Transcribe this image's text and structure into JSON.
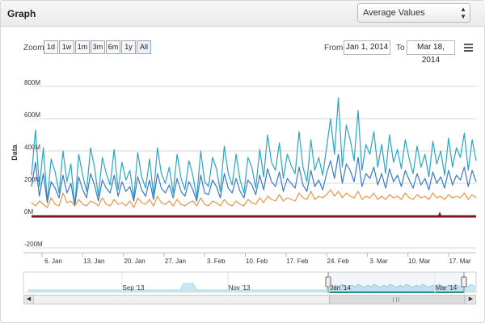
{
  "header": {
    "title": "Graph",
    "metric_select": {
      "value": "Average Values",
      "icon": "updown-arrows-icon"
    }
  },
  "toolbar": {
    "zoom_label": "Zoom",
    "zoom_buttons": [
      "1d",
      "1w",
      "1m",
      "3m",
      "6m",
      "1y",
      "All"
    ],
    "from_label": "From",
    "from_value": "Jan 1, 2014",
    "to_label": "To",
    "to_value": "Mar 18, 2014",
    "menu_icon": "hamburger-menu-icon"
  },
  "colors": {
    "series_cyan": "#2aa5c4",
    "series_blue": "#3b78c8",
    "series_orange": "#e8954a",
    "series_darkred": "#7a1a1a",
    "navigator_fill": "#c8e9f3",
    "grid": "#d8d8d8"
  },
  "chart_data": {
    "type": "line",
    "ylabel": "Data",
    "y_ticks": [
      "800M",
      "600M",
      "400M",
      "200M",
      "0M",
      "-200M"
    ],
    "ylim": [
      -200,
      800
    ],
    "y_unit": "M",
    "x_ticks": [
      "6. Jan",
      "13. Jan",
      "20. Jan",
      "27. Jan",
      "3. Feb",
      "10. Feb",
      "17. Feb",
      "24. Feb",
      "3. Mar",
      "10. Mar",
      "17. Mar"
    ],
    "x_range": [
      "2014-01-01",
      "2014-03-18"
    ],
    "grid": true,
    "legend": "none",
    "series": [
      {
        "key": "cyan",
        "color": "#2aa5c4",
        "level": "high",
        "samples": [
          250,
          530,
          180,
          420,
          90,
          350,
          270,
          140,
          400,
          210,
          320,
          60,
          380,
          250,
          150,
          420,
          300,
          120,
          360,
          260,
          190,
          410,
          160,
          330,
          220,
          280,
          110,
          390,
          240,
          170,
          350,
          130,
          420,
          260,
          200,
          300,
          140,
          380,
          230,
          160,
          340,
          250,
          110,
          400,
          210,
          180,
          360,
          290,
          150,
          430,
          260,
          190,
          380,
          220,
          140,
          360,
          300,
          170,
          410,
          240,
          500,
          330,
          280,
          450,
          230,
          380,
          310,
          260,
          520,
          300,
          210,
          470,
          280,
          360,
          250,
          420,
          600,
          380,
          730,
          300,
          560,
          470,
          340,
          650,
          280,
          440,
          380,
          520,
          300,
          440,
          260,
          500,
          330,
          410,
          290,
          470,
          350,
          260,
          430,
          300,
          380,
          240,
          460,
          320,
          400,
          250,
          480,
          300,
          420,
          360,
          510,
          280,
          470,
          340
        ]
      },
      {
        "key": "blue",
        "color": "#3b78c8",
        "level": "mid",
        "samples": [
          180,
          330,
          120,
          260,
          80,
          210,
          170,
          110,
          250,
          140,
          200,
          60,
          240,
          160,
          110,
          260,
          190,
          90,
          220,
          170,
          140,
          250,
          120,
          210,
          150,
          180,
          90,
          240,
          160,
          120,
          220,
          100,
          260,
          170,
          140,
          190,
          110,
          230,
          150,
          120,
          210,
          160,
          90,
          250,
          140,
          130,
          220,
          180,
          110,
          260,
          170,
          140,
          230,
          150,
          110,
          220,
          190,
          130,
          250,
          160,
          290,
          210,
          180,
          270,
          150,
          230,
          200,
          170,
          300,
          190,
          150,
          280,
          180,
          220,
          160,
          260,
          340,
          230,
          380,
          200,
          320,
          280,
          210,
          360,
          180,
          260,
          230,
          300,
          190,
          260,
          170,
          290,
          210,
          250,
          180,
          280,
          220,
          170,
          260,
          190,
          230,
          160,
          270,
          200,
          240,
          170,
          280,
          190,
          250,
          220,
          300,
          180,
          280,
          210
        ]
      },
      {
        "key": "orange",
        "color": "#e8954a",
        "level": "low",
        "samples": [
          80,
          60,
          90,
          70,
          50,
          110,
          70,
          60,
          140,
          80,
          90,
          60,
          100,
          70,
          60,
          90,
          80,
          60,
          110,
          70,
          60,
          100,
          70,
          80,
          60,
          90,
          50,
          110,
          80,
          70,
          100,
          60,
          120,
          80,
          70,
          90,
          60,
          100,
          70,
          60,
          80,
          90,
          60,
          110,
          70,
          60,
          90,
          80,
          60,
          100,
          70,
          60,
          90,
          70,
          60,
          100,
          80,
          70,
          110,
          80,
          120,
          100,
          90,
          130,
          90,
          110,
          100,
          90,
          140,
          110,
          100,
          150,
          100,
          120,
          110,
          130,
          160,
          120,
          150,
          110,
          140,
          120,
          110,
          150,
          100,
          120,
          110,
          140,
          100,
          120,
          100,
          130,
          110,
          120,
          100,
          140,
          110,
          100,
          130,
          110,
          120,
          100,
          140,
          110,
          120,
          100,
          130,
          110,
          120,
          110,
          140,
          100,
          130,
          110
        ]
      },
      {
        "key": "darkred",
        "color": "#7a1a1a",
        "level": "zero",
        "samples": [
          0,
          0
        ]
      }
    ]
  },
  "navigator": {
    "labels": [
      "Sep '13",
      "Nov '13",
      "Jan '14",
      "Mar '14"
    ]
  },
  "scrollbar": {
    "left_icon": "scroll-left-arrow-icon",
    "right_icon": "scroll-right-arrow-icon",
    "grip_icon": "scroll-grip-icon"
  }
}
